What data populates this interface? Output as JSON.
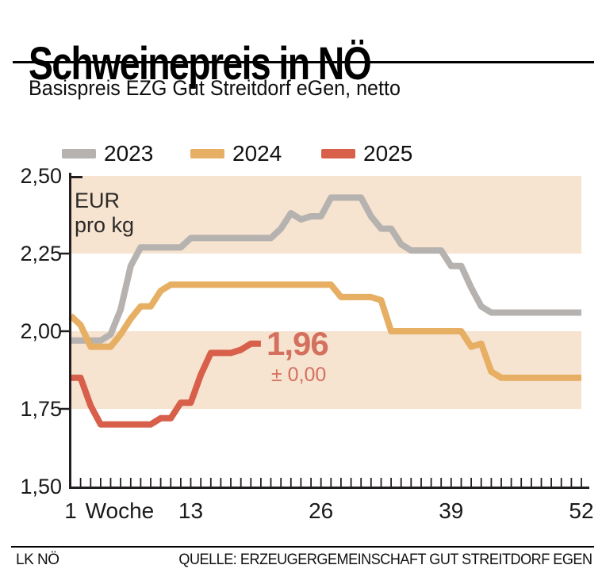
{
  "header": {
    "title": "Schweinepreis in NÖ",
    "subtitle": "Basispreis EZG Gut Streitdorf eGen, netto"
  },
  "legend": [
    {
      "label": "2023",
      "color": "#b5b2af"
    },
    {
      "label": "2024",
      "color": "#e6af63"
    },
    {
      "label": "2025",
      "color": "#d8604b"
    }
  ],
  "chart_data": {
    "type": "line",
    "title": "Schweinepreis in NÖ",
    "xlabel": "Woche",
    "ylabel": "EUR pro kg",
    "unit_label": [
      "EUR",
      "pro kg"
    ],
    "x_range_weeks": [
      1,
      52
    ],
    "ylim": [
      1.5,
      2.5
    ],
    "grid": false,
    "band_color": "#f6e3d0",
    "bands": [
      [
        2.25,
        2.5
      ],
      [
        1.75,
        2.0
      ]
    ],
    "axis_color": "#231f20",
    "yticks": [
      {
        "label": "2,50",
        "value": 2.5
      },
      {
        "label": "2,25",
        "value": 2.25
      },
      {
        "label": "2,00",
        "value": 2.0
      },
      {
        "label": "1,75",
        "value": 1.75
      },
      {
        "label": "1,50",
        "value": 1.5
      }
    ],
    "xticks": [
      {
        "label": "1",
        "week": 1
      },
      {
        "label": "Woche",
        "week": 5.9
      },
      {
        "label": "13",
        "week": 13
      },
      {
        "label": "26",
        "week": 26
      },
      {
        "label": "39",
        "week": 39
      },
      {
        "label": "52",
        "week": 52
      }
    ],
    "series": [
      {
        "name": "2023",
        "color": "#b5b2af",
        "start_week": 1,
        "values": [
          1.97,
          1.97,
          1.97,
          1.97,
          1.99,
          2.07,
          2.21,
          2.27,
          2.27,
          2.27,
          2.27,
          2.27,
          2.3,
          2.3,
          2.3,
          2.3,
          2.3,
          2.3,
          2.3,
          2.3,
          2.3,
          2.33,
          2.38,
          2.36,
          2.37,
          2.37,
          2.43,
          2.43,
          2.43,
          2.43,
          2.37,
          2.33,
          2.33,
          2.28,
          2.26,
          2.26,
          2.26,
          2.26,
          2.21,
          2.21,
          2.14,
          2.08,
          2.06,
          2.06,
          2.06,
          2.06,
          2.06,
          2.06,
          2.06,
          2.06,
          2.06,
          2.06
        ]
      },
      {
        "name": "2024",
        "color": "#e6af63",
        "start_week": 1,
        "values": [
          2.05,
          2.02,
          1.95,
          1.95,
          1.95,
          1.99,
          2.04,
          2.08,
          2.08,
          2.13,
          2.15,
          2.15,
          2.15,
          2.15,
          2.15,
          2.15,
          2.15,
          2.15,
          2.15,
          2.15,
          2.15,
          2.15,
          2.15,
          2.15,
          2.15,
          2.15,
          2.15,
          2.11,
          2.11,
          2.11,
          2.11,
          2.1,
          2.0,
          2.0,
          2.0,
          2.0,
          2.0,
          2.0,
          2.0,
          2.0,
          1.95,
          1.96,
          1.87,
          1.85,
          1.85,
          1.85,
          1.85,
          1.85,
          1.85,
          1.85,
          1.85,
          1.85
        ]
      },
      {
        "name": "2025",
        "color": "#d8604b",
        "start_week": 1,
        "values": [
          1.85,
          1.85,
          1.76,
          1.7,
          1.7,
          1.7,
          1.7,
          1.7,
          1.7,
          1.72,
          1.72,
          1.77,
          1.77,
          1.86,
          1.93,
          1.93,
          1.93,
          1.94,
          1.96,
          1.96
        ]
      }
    ],
    "annotation": {
      "text": "1,96",
      "subtext": "± 0,00",
      "color": "#d4705e"
    }
  },
  "footer": {
    "left": "LK NÖ",
    "right": "QUELLE: ERZEUGERGEMEINSCHAFT GUT STREITDORF EGEN"
  }
}
